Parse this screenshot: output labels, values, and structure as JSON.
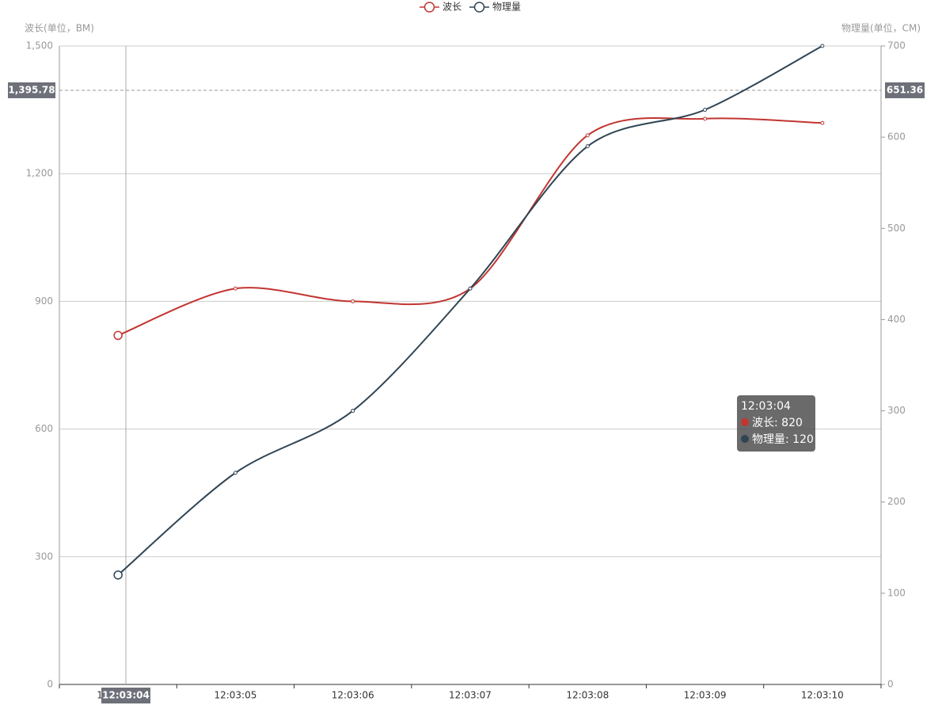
{
  "chart_data": {
    "type": "line",
    "smooth": true,
    "categories": [
      "12:03:04",
      "12:03:05",
      "12:03:06",
      "12:03:07",
      "12:03:08",
      "12:03:09",
      "12:03:10"
    ],
    "y_axis_label": "波长(单位，BM)",
    "y2_axis_label": "物理量(单位，CM)",
    "ylim": [
      0,
      1500
    ],
    "yticks": [
      0,
      300,
      600,
      900,
      {
        "value": 1200,
        "label": "1,200"
      },
      {
        "value": 1500,
        "label": "1,500"
      }
    ],
    "y2lim": [
      0,
      700
    ],
    "y2ticks": [
      0,
      100,
      200,
      300,
      400,
      500,
      600,
      700
    ],
    "grid": true,
    "legend": "top",
    "series": [
      {
        "name": "波长",
        "color": "#c23531",
        "values": [
          820,
          930,
          900,
          930,
          1290,
          1329,
          1319
        ]
      },
      {
        "name": "物理量",
        "color": "#2f4554",
        "axis": "y2",
        "values": [
          120,
          232,
          300,
          434,
          590,
          630,
          700
        ]
      }
    ],
    "axis_pointer": {
      "x_label": "12:03:04",
      "y": {
        "value": 1395.78,
        "label": "1,395.78"
      },
      "y2": {
        "value": 651.36,
        "label": "651.36"
      }
    },
    "tooltip": {
      "title": "12:03:04",
      "rows": [
        "波长: 820",
        "物理量: 120"
      ]
    }
  }
}
